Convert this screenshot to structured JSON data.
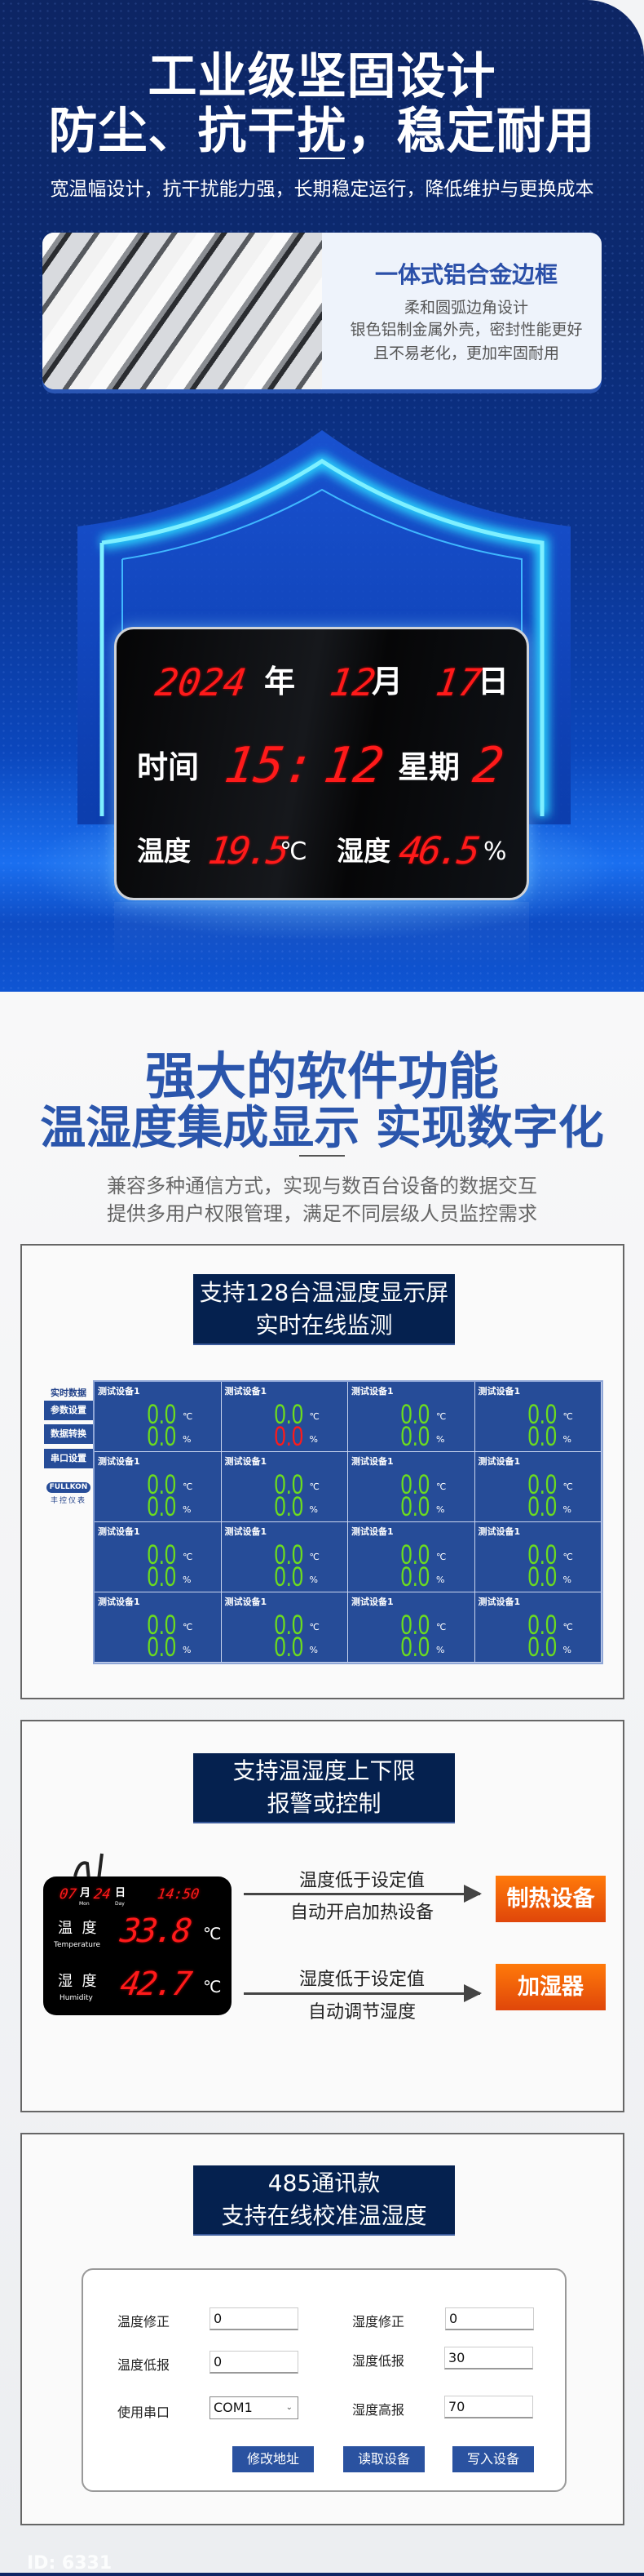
{
  "hero": {
    "title_line1": "工业级坚固设计",
    "title_line2": "防尘、抗干扰，稳定耐用",
    "subtitle": "宽温幅设计，抗干扰能力强，长期稳定运行，降低维护与更换成本",
    "card": {
      "title": "一体式铝合金边框",
      "lines": [
        "柔和圆弧边角设计",
        "银色铝制金属外壳，密封性能更好",
        "且不易老化，更加牢固耐用"
      ]
    },
    "display": {
      "year": "2024",
      "year_unit": "年",
      "month": "12",
      "month_unit": "月",
      "day": "17",
      "day_unit": "日",
      "time_label": "时间",
      "hour": "15",
      "colon": ":",
      "minute": "12",
      "week_label": "星期",
      "weekday": "2",
      "temp_label": "温度",
      "temp": "19.5",
      "temp_unit": "℃",
      "hum_label": "湿度",
      "hum": "46.5",
      "hum_unit": "%"
    }
  },
  "software": {
    "title_line1": "强大的软件功能",
    "title_line2": "温湿度集成显示 实现数字化",
    "desc_line1": "兼容多种通信方式，实现与数百台设备的数据交互",
    "desc_line2": "提供多用户权限管理，满足不同层级人员监控需求"
  },
  "monitor": {
    "banner_line1": "支持128台温湿度显示屏",
    "banner_line2": "实时在线监测",
    "sidebar": {
      "active": "实时数据",
      "buttons": [
        "参数设置",
        "数据转换",
        "串口设置"
      ],
      "logo": "FULLKON",
      "logo_sub": "丰控仪表"
    },
    "temp_unit": "℃",
    "hum_unit": "%",
    "colors": {
      "normal": "#6cdc1e",
      "alarm": "#ff1a1a",
      "panel": "#264c98"
    },
    "cells": [
      {
        "label": "测试设备1",
        "temp": "0.0",
        "hum": "0.0",
        "hum_alarm": false
      },
      {
        "label": "测试设备1",
        "temp": "0.0",
        "hum": "0.0",
        "hum_alarm": true
      },
      {
        "label": "测试设备1",
        "temp": "0.0",
        "hum": "0.0",
        "hum_alarm": false
      },
      {
        "label": "测试设备1",
        "temp": "0.0",
        "hum": "0.0",
        "hum_alarm": false
      },
      {
        "label": "测试设备1",
        "temp": "0.0",
        "hum": "0.0",
        "hum_alarm": false
      },
      {
        "label": "测试设备1",
        "temp": "0.0",
        "hum": "0.0",
        "hum_alarm": false
      },
      {
        "label": "测试设备1",
        "temp": "0.0",
        "hum": "0.0",
        "hum_alarm": false
      },
      {
        "label": "测试设备1",
        "temp": "0.0",
        "hum": "0.0",
        "hum_alarm": false
      },
      {
        "label": "测试设备1",
        "temp": "0.0",
        "hum": "0.0",
        "hum_alarm": false
      },
      {
        "label": "测试设备1",
        "temp": "0.0",
        "hum": "0.0",
        "hum_alarm": false
      },
      {
        "label": "测试设备1",
        "temp": "0.0",
        "hum": "0.0",
        "hum_alarm": false
      },
      {
        "label": "测试设备1",
        "temp": "0.0",
        "hum": "0.0",
        "hum_alarm": false
      },
      {
        "label": "测试设备1",
        "temp": "0.0",
        "hum": "0.0",
        "hum_alarm": false
      },
      {
        "label": "测试设备1",
        "temp": "0.0",
        "hum": "0.0",
        "hum_alarm": false
      },
      {
        "label": "测试设备1",
        "temp": "0.0",
        "hum": "0.0",
        "hum_alarm": false
      },
      {
        "label": "测试设备1",
        "temp": "0.0",
        "hum": "0.0",
        "hum_alarm": false
      }
    ]
  },
  "alarm": {
    "banner_line1": "支持温湿度上下限",
    "banner_line2": "报警或控制",
    "device": {
      "month": "07",
      "month_unit": "月",
      "month_en": "Mon",
      "day": "24",
      "day_unit": "日",
      "day_en": "Day",
      "time": "14:50",
      "temp_label": "温  度",
      "temp_en": "Temperature",
      "temp": "33.8",
      "temp_unit": "℃",
      "hum_label": "湿  度",
      "hum_en": "Humidity",
      "hum": "42.7",
      "hum_unit": "℃"
    },
    "rules": [
      {
        "condition": "温度低于设定值",
        "action": "自动开启加热设备",
        "target": "制热设备"
      },
      {
        "condition": "湿度低于设定值",
        "action": "自动调节湿度",
        "target": "加湿器"
      }
    ]
  },
  "calibration": {
    "banner_line1": "485通讯款",
    "banner_line2": "支持在线校准温湿度",
    "fields": {
      "temp_offset": {
        "label": "温度修正",
        "value": "0"
      },
      "hum_offset": {
        "label": "湿度修正",
        "value": "0"
      },
      "temp_low": {
        "label": "温度低报",
        "value": "0"
      },
      "hum_low": {
        "label": "湿度低报",
        "value": "30"
      },
      "port": {
        "label": "使用串口",
        "value": "COM1"
      },
      "hum_high": {
        "label": "湿度高报",
        "value": "70"
      }
    },
    "buttons": [
      "修改地址",
      "读取设备",
      "写入设备"
    ]
  },
  "watermark": "ID: 6331"
}
